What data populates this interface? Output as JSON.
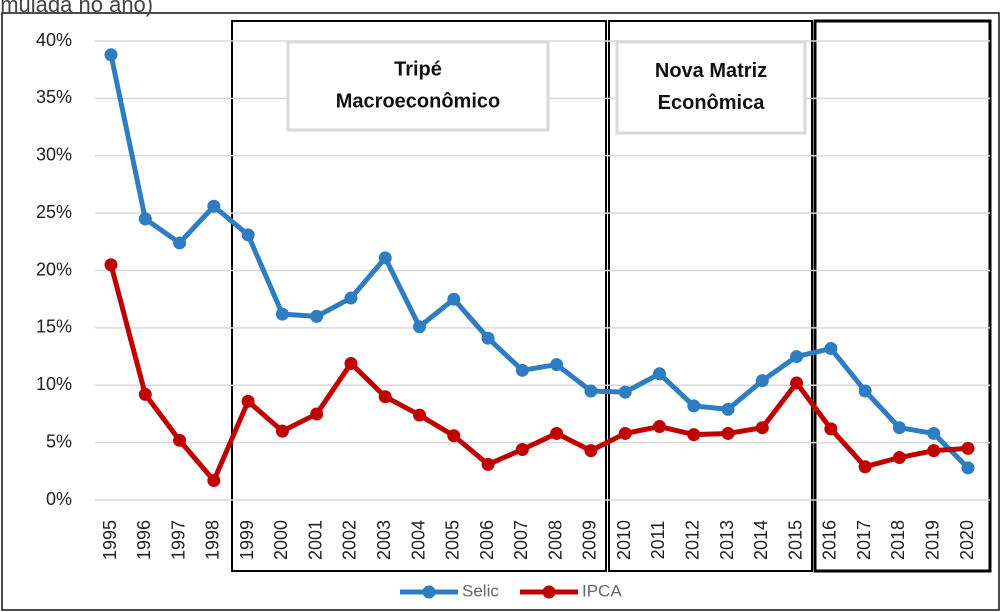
{
  "chart_data": {
    "type": "line",
    "title": "umulada no ano)",
    "categories": [
      "1995",
      "1996",
      "1997",
      "1998",
      "1999",
      "2000",
      "2001",
      "2002",
      "2003",
      "2004",
      "2005",
      "2006",
      "2007",
      "2008",
      "2009",
      "2010",
      "2011",
      "2012",
      "2013",
      "2014",
      "2015",
      "2016",
      "2017",
      "2018",
      "2019",
      "2020"
    ],
    "series": [
      {
        "name": "Selic",
        "color": "#2e7cc1",
        "values": [
          38.8,
          24.5,
          22.4,
          25.6,
          23.1,
          16.2,
          16.0,
          17.6,
          21.1,
          15.1,
          17.5,
          14.1,
          11.3,
          11.8,
          9.5,
          9.4,
          11.0,
          8.2,
          7.9,
          10.4,
          12.5,
          13.2,
          9.5,
          6.3,
          5.8,
          2.8
        ]
      },
      {
        "name": "IPCA",
        "color": "#c00000",
        "values": [
          20.5,
          9.2,
          5.2,
          1.7,
          8.6,
          6.0,
          7.5,
          11.9,
          9.0,
          7.4,
          5.6,
          3.1,
          4.4,
          5.8,
          4.3,
          5.8,
          6.4,
          5.7,
          5.8,
          6.3,
          10.2,
          6.2,
          2.9,
          3.7,
          4.3,
          4.5
        ]
      }
    ],
    "ylim": [
      0,
      40
    ],
    "yticks": [
      {
        "value": 0,
        "label": "0%"
      },
      {
        "value": 5,
        "label": "5%"
      },
      {
        "value": 10,
        "label": "10%"
      },
      {
        "value": 15,
        "label": "15%"
      },
      {
        "value": 20,
        "label": "20%"
      },
      {
        "value": 25,
        "label": "25%"
      },
      {
        "value": 30,
        "label": "30%"
      },
      {
        "value": 35,
        "label": "35%"
      },
      {
        "value": 40,
        "label": "40%"
      }
    ],
    "grid": true,
    "legend": "bottom",
    "annotations": [
      {
        "lines": [
          "Tripé",
          "Macroeconômico"
        ]
      },
      {
        "lines": [
          "Nova Matriz",
          "Econômica"
        ]
      }
    ]
  }
}
